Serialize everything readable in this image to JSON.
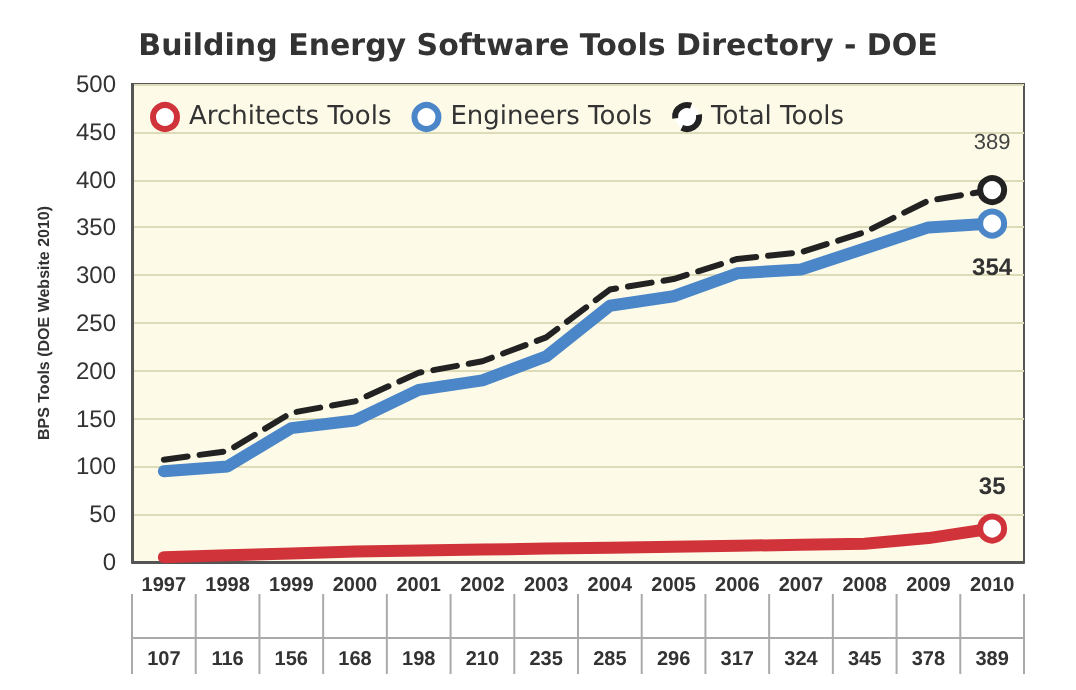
{
  "chart_data": {
    "type": "line",
    "title": "Building Energy Software Tools Directory - DOE",
    "ylabel": "BPS Tools (DOE Website 2010)",
    "categories": [
      "1997",
      "1998",
      "1999",
      "2000",
      "2001",
      "2002",
      "2003",
      "2004",
      "2005",
      "2006",
      "2007",
      "2008",
      "2009",
      "2010"
    ],
    "series": [
      {
        "name": "Architects Tools",
        "color": "#d0343a",
        "values": [
          5,
          7,
          9,
          11,
          12,
          13,
          14,
          15,
          16,
          17,
          18,
          19,
          25,
          35
        ],
        "value_labels": [
          null,
          null,
          null,
          null,
          null,
          null,
          null,
          null,
          null,
          null,
          null,
          null,
          null,
          "35"
        ]
      },
      {
        "name": "Engineers Tools",
        "color": "#4a86c8",
        "values": [
          95,
          100,
          140,
          148,
          180,
          190,
          215,
          268,
          278,
          302,
          306,
          328,
          350,
          354
        ],
        "value_labels": [
          null,
          null,
          null,
          null,
          null,
          null,
          null,
          null,
          null,
          null,
          null,
          null,
          null,
          "354"
        ]
      },
      {
        "name": "Total Tools",
        "color": "#222222",
        "line_style": "dashed",
        "values": [
          107,
          116,
          156,
          168,
          198,
          210,
          235,
          285,
          296,
          317,
          324,
          345,
          378,
          389
        ],
        "value_labels": [
          "107",
          "116",
          "156",
          "168",
          "198",
          "210",
          "235",
          "285",
          "296",
          "317",
          "324",
          "345",
          "378",
          "389"
        ]
      }
    ],
    "annotations": [
      {
        "text": "389",
        "x": "2010",
        "y": 389
      }
    ],
    "ylim": [
      0,
      500
    ],
    "yticks": [
      0,
      50,
      100,
      150,
      200,
      250,
      300,
      350,
      400,
      450,
      500
    ],
    "grid": "y",
    "legend": "top left"
  }
}
